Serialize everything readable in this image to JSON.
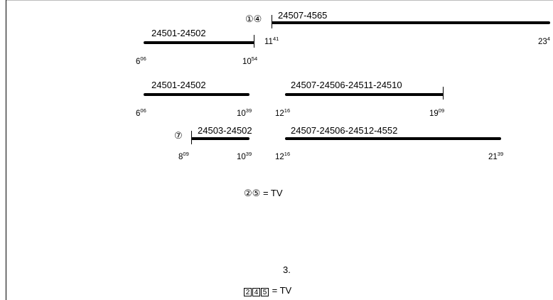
{
  "diagram": {
    "rows": [
      {
        "segments": [
          {
            "label": "24501-24502",
            "start_h": "6",
            "start_m": "06",
            "end_h": "10",
            "end_m": "54"
          },
          {
            "prefix": "①④",
            "label": "24507-4565",
            "start_h": "11",
            "start_m": "41",
            "end_h": "23",
            "end_m": "4"
          }
        ]
      },
      {
        "segments": [
          {
            "label": "24501-24502",
            "start_h": "6",
            "start_m": "06",
            "end_h": "10",
            "end_m": "39"
          },
          {
            "label": "24507-24506-24511-24510",
            "start_h": "12",
            "start_m": "16",
            "end_h": "19",
            "end_m": "09"
          }
        ]
      },
      {
        "segments": [
          {
            "prefix": "⑦",
            "label": "24503-24502",
            "start_h": "8",
            "start_m": "09",
            "end_h": "10",
            "end_m": "39"
          },
          {
            "label": "24507-24506-24512-4552",
            "start_h": "12",
            "start_m": "16",
            "end_h": "21",
            "end_m": "39"
          }
        ]
      }
    ],
    "legend1": {
      "symbols": "②⑤",
      "text": "= TV"
    },
    "section_number": "3.",
    "legend2": {
      "symbols": "245",
      "text": "= TV"
    }
  }
}
